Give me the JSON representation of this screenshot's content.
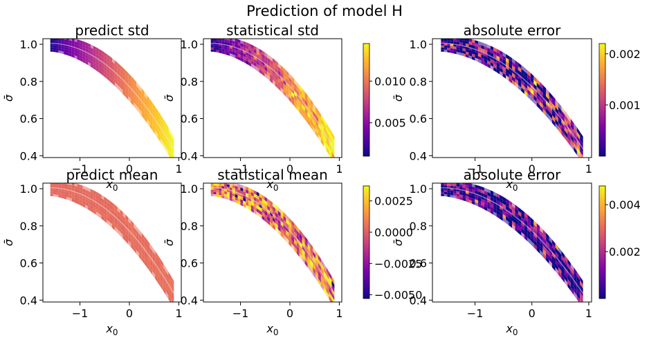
{
  "suptitle": "Prediction of model H",
  "colormap": "plasma",
  "colors": {
    "band_highlight": "#f3e6ee",
    "frame": "#000000",
    "background": "#ffffff"
  },
  "chart_data": [
    {
      "type": "heatmap",
      "id": "predict-std",
      "title": "predict std",
      "xlabel": "x0",
      "ylabel": "σ̄",
      "xticks": [
        -1,
        0,
        1
      ],
      "yticks": [
        0.4,
        0.6,
        0.8,
        1.0
      ],
      "xlim": [
        -1.75,
        1.05
      ],
      "ylim": [
        0.39,
        1.03
      ],
      "band": {
        "x_start": -1.6,
        "x_end": 0.9,
        "y_start": 1.0,
        "y_end": 0.43,
        "shape_power": 2.0,
        "thickness": 0.15
      },
      "value_range": [
        0.001,
        0.015
      ],
      "value_trend": [
        0.001,
        0.015
      ],
      "noise": 0.0,
      "patchy": 0.0,
      "seed": 1,
      "colorbar": null
    },
    {
      "type": "heatmap",
      "id": "statistical-std",
      "title": "statistical std",
      "xlabel": "x0",
      "ylabel": "σ̄",
      "xticks": [
        -1,
        0,
        1
      ],
      "yticks": [
        0.4,
        0.6,
        0.8,
        1.0
      ],
      "xlim": [
        -1.75,
        1.05
      ],
      "ylim": [
        0.39,
        1.03
      ],
      "band": {
        "x_start": -1.6,
        "x_end": 0.9,
        "y_start": 1.0,
        "y_end": 0.43,
        "shape_power": 2.0,
        "thickness": 0.15
      },
      "value_range": [
        0.001,
        0.015
      ],
      "value_trend": [
        0.001,
        0.015
      ],
      "noise": 0.12,
      "patchy": 0.35,
      "seed": 7,
      "colorbar": {
        "ticks": [
          0.005,
          0.01
        ],
        "tick_labels": [
          "0.005",
          "0.010"
        ],
        "range": [
          0.001,
          0.0145
        ]
      }
    },
    {
      "type": "heatmap",
      "id": "abs-error-std",
      "title": "absolute error",
      "xlabel": "x0",
      "ylabel": "σ̄",
      "xticks": [
        -1,
        0,
        1
      ],
      "yticks": [
        0.4,
        0.6,
        0.8,
        1.0
      ],
      "xlim": [
        -1.75,
        1.05
      ],
      "ylim": [
        0.39,
        1.03
      ],
      "band": {
        "x_start": -1.6,
        "x_end": 0.9,
        "y_start": 1.0,
        "y_end": 0.43,
        "shape_power": 2.0,
        "thickness": 0.15
      },
      "value_range": [
        0.0,
        0.0022
      ],
      "value_trend": [
        0.0001,
        0.0006
      ],
      "noise": 0.55,
      "patchy": 0.6,
      "seed": 13,
      "colorbar": {
        "ticks": [
          0.001,
          0.002
        ],
        "tick_labels": [
          "0.001",
          "0.002"
        ],
        "range": [
          0.0,
          0.0022
        ]
      }
    },
    {
      "type": "heatmap",
      "id": "predict-mean",
      "title": "predict mean",
      "xlabel": "x0",
      "ylabel": "σ̄",
      "xticks": [
        -1,
        0,
        1
      ],
      "yticks": [
        0.4,
        0.6,
        0.8,
        1.0
      ],
      "xlim": [
        -1.75,
        1.05
      ],
      "ylim": [
        0.39,
        1.03
      ],
      "band": {
        "x_start": -1.6,
        "x_end": 0.9,
        "y_start": 1.0,
        "y_end": 0.43,
        "shape_power": 2.0,
        "thickness": 0.15
      },
      "value_range": [
        -0.0055,
        0.0037
      ],
      "value_trend": [
        0.0002,
        0.0004
      ],
      "noise": 0.02,
      "patchy": 0.0,
      "seed": 3,
      "colorbar": null
    },
    {
      "type": "heatmap",
      "id": "statistical-mean",
      "title": "statistical mean",
      "xlabel": "x0",
      "ylabel": "σ̄",
      "xticks": [
        -1,
        0,
        1
      ],
      "yticks": [
        0.4,
        0.6,
        0.8,
        1.0
      ],
      "xlim": [
        -1.75,
        1.05
      ],
      "ylim": [
        0.39,
        1.03
      ],
      "band": {
        "x_start": -1.6,
        "x_end": 0.9,
        "y_start": 1.0,
        "y_end": 0.43,
        "shape_power": 2.0,
        "thickness": 0.15
      },
      "value_range": [
        -0.0055,
        0.0037
      ],
      "value_trend": [
        0.0002,
        0.0004
      ],
      "noise": 0.35,
      "patchy": 0.55,
      "seed": 21,
      "colorbar": {
        "ticks": [
          -0.005,
          -0.0025,
          0.0,
          0.0025
        ],
        "tick_labels": [
          "−0.0050",
          "−0.0025",
          "0.0000",
          "0.0025"
        ],
        "range": [
          -0.0053,
          0.0037
        ]
      }
    },
    {
      "type": "heatmap",
      "id": "abs-error-mean",
      "title": "absolute error",
      "xlabel": "x0",
      "ylabel": "σ̄",
      "xticks": [
        -1,
        0,
        1
      ],
      "yticks": [
        0.4,
        0.6,
        0.8,
        1.0
      ],
      "xlim": [
        -1.75,
        1.05
      ],
      "ylim": [
        0.39,
        1.03
      ],
      "band": {
        "x_start": -1.6,
        "x_end": 0.9,
        "y_start": 1.0,
        "y_end": 0.43,
        "shape_power": 2.0,
        "thickness": 0.15
      },
      "value_range": [
        0.0,
        0.0048
      ],
      "value_trend": [
        0.0002,
        0.0008
      ],
      "noise": 0.45,
      "patchy": 0.6,
      "seed": 29,
      "colorbar": {
        "ticks": [
          0.002,
          0.004
        ],
        "tick_labels": [
          "0.002",
          "0.004"
        ],
        "range": [
          0.0,
          0.0048
        ]
      }
    }
  ]
}
